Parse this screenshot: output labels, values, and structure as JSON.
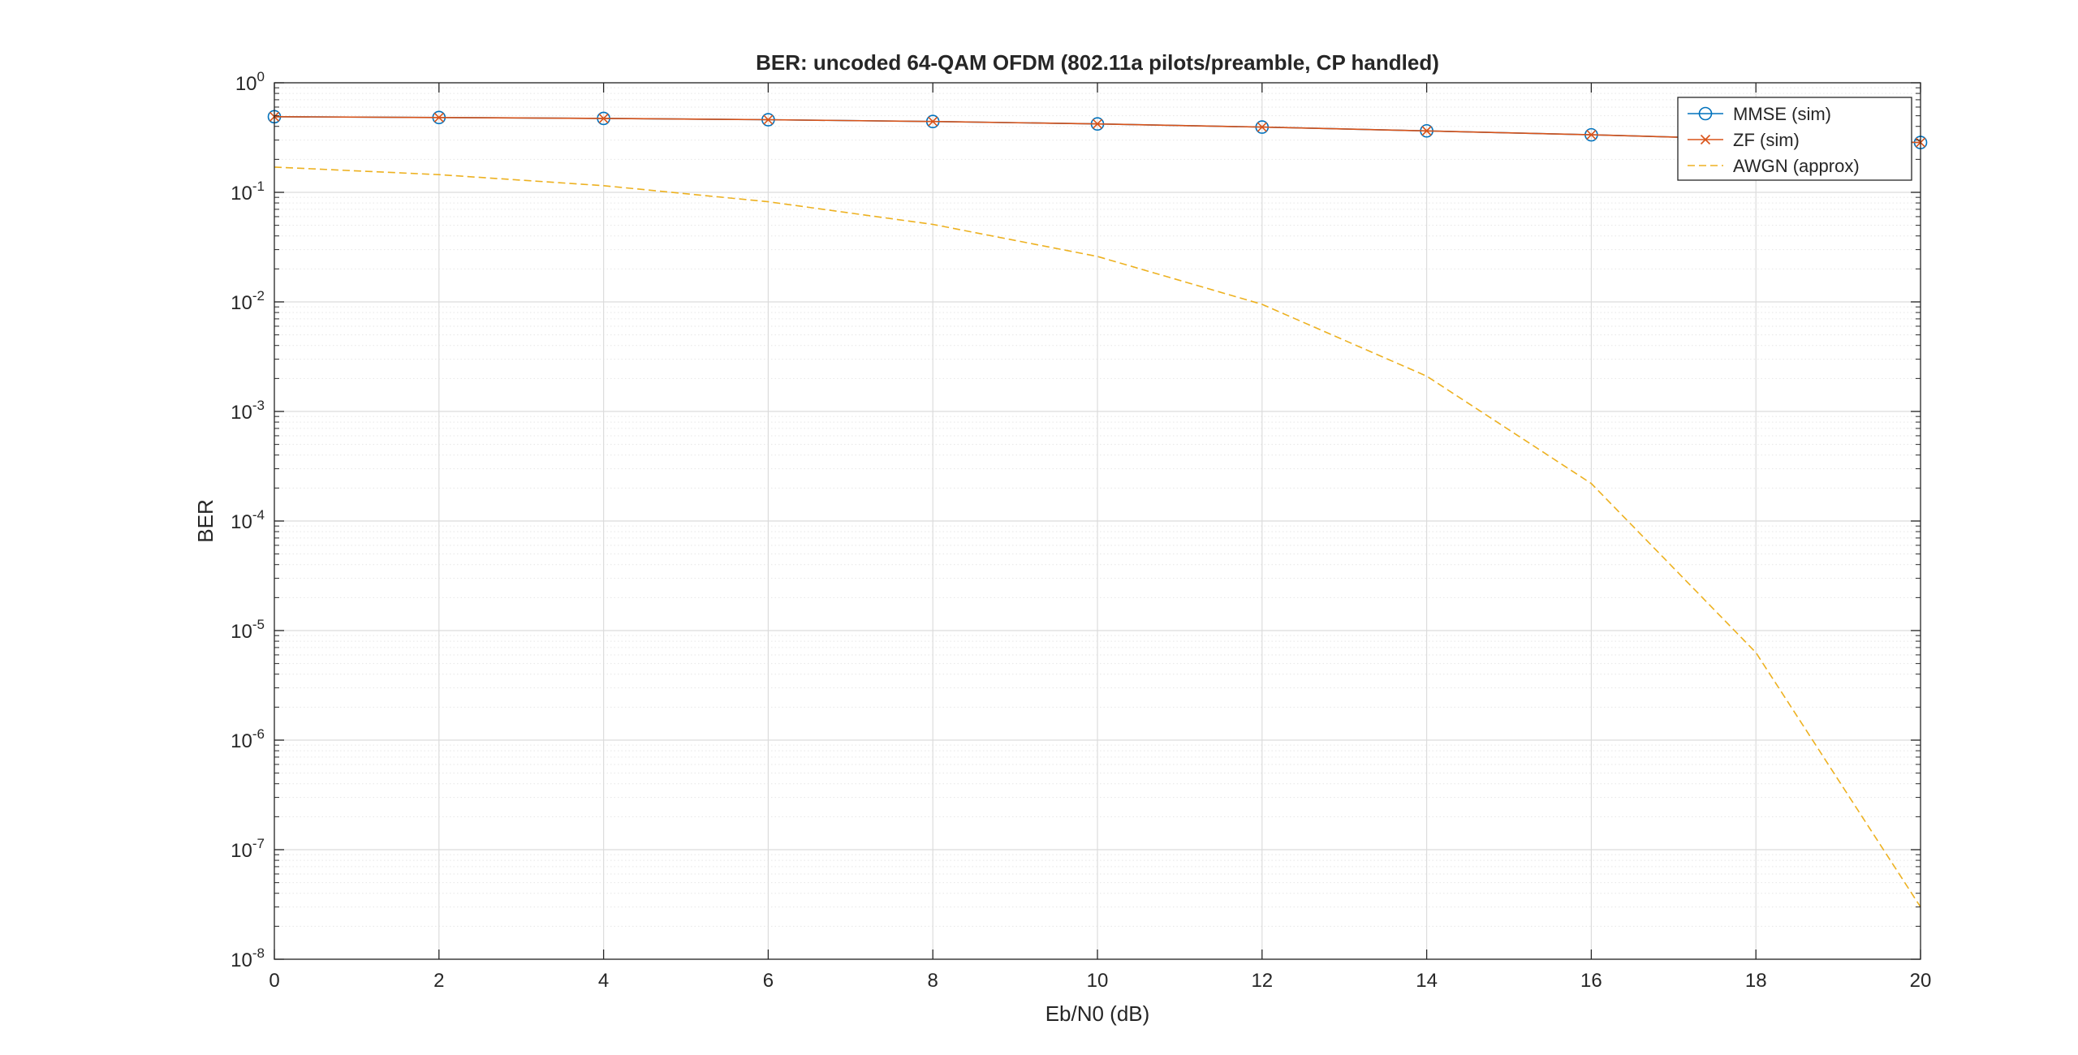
{
  "chart_data": {
    "type": "line",
    "title": "BER: uncoded 64-QAM OFDM (802.11a pilots/preamble, CP handled)",
    "xlabel": "Eb/N0 (dB)",
    "ylabel": "BER",
    "xlim": [
      0,
      20
    ],
    "ylim": [
      1e-08,
      1
    ],
    "yscale": "log",
    "grid": true,
    "minor_grid": true,
    "legend_position": "top-right",
    "x_ticks": [
      0,
      2,
      4,
      6,
      8,
      10,
      12,
      14,
      16,
      18,
      20
    ],
    "y_ticks": [
      {
        "base": "10",
        "exp": "-8"
      },
      {
        "base": "10",
        "exp": "-7"
      },
      {
        "base": "10",
        "exp": "-6"
      },
      {
        "base": "10",
        "exp": "-5"
      },
      {
        "base": "10",
        "exp": "-4"
      },
      {
        "base": "10",
        "exp": "-3"
      },
      {
        "base": "10",
        "exp": "-2"
      },
      {
        "base": "10",
        "exp": "-1"
      },
      {
        "base": "10",
        "exp": "0"
      }
    ],
    "series": [
      {
        "name": "MMSE (sim)",
        "color": "#0072BD",
        "marker": "circle",
        "line": "solid",
        "x": [
          0,
          2,
          4,
          6,
          8,
          10,
          12,
          14,
          16,
          18,
          20
        ],
        "values": [
          0.49,
          0.482,
          0.473,
          0.46,
          0.443,
          0.421,
          0.394,
          0.364,
          0.335,
          0.305,
          0.285
        ]
      },
      {
        "name": "ZF (sim)",
        "color": "#D95319",
        "marker": "x",
        "line": "solid",
        "x": [
          0,
          2,
          4,
          6,
          8,
          10,
          12,
          14,
          16,
          18,
          20
        ],
        "values": [
          0.49,
          0.482,
          0.473,
          0.46,
          0.443,
          0.421,
          0.394,
          0.364,
          0.335,
          0.305,
          0.285
        ]
      },
      {
        "name": "AWGN (approx)",
        "color": "#EDB120",
        "marker": "none",
        "line": "dashed",
        "x": [
          0,
          2,
          4,
          6,
          8,
          10,
          12,
          14,
          16,
          18,
          20
        ],
        "values": [
          0.17,
          0.145,
          0.115,
          0.082,
          0.051,
          0.026,
          0.0095,
          0.0021,
          0.00022,
          6.3e-06,
          3e-08
        ]
      }
    ]
  }
}
